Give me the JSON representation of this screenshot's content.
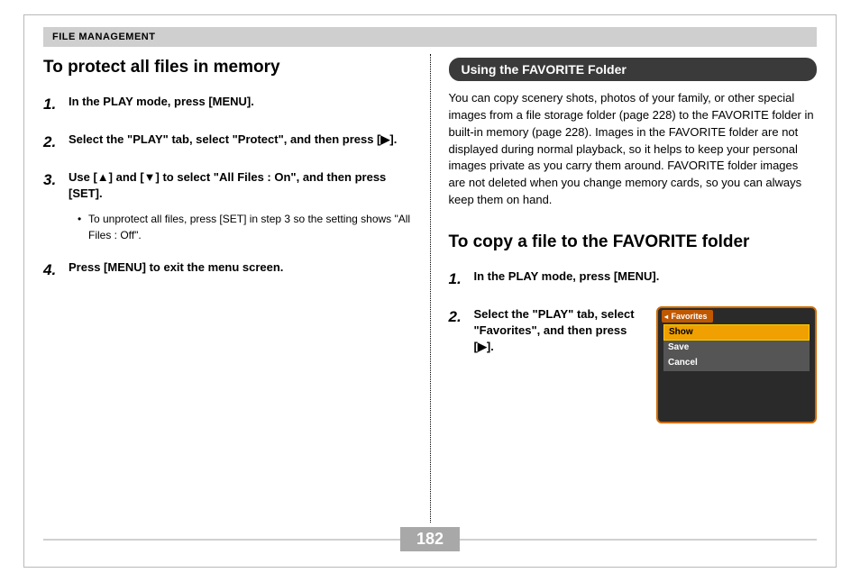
{
  "header": {
    "section": "FILE MANAGEMENT"
  },
  "page_number": "182",
  "colors": {
    "header_bg": "#cfcfcf",
    "pill_bg": "#3a3a3a",
    "pill_text": "#ffffff",
    "page_border": "#b8b8b8",
    "pagenum_bg": "#a8a8a8",
    "screenshot_border": "#d06a00",
    "screenshot_bg": "#2a2a2a",
    "menu_selected_bg": "#f0a000",
    "menu_item_bg": "#555555"
  },
  "left": {
    "title": "To protect all files in memory",
    "steps": [
      {
        "n": "1.",
        "text": "In the PLAY mode, press [MENU]."
      },
      {
        "n": "2.",
        "text": "Select the \"PLAY\" tab, select \"Protect\", and then press [▶]."
      },
      {
        "n": "3.",
        "text": "Use [▲] and [▼] to select \"All Files : On\", and then press [SET]."
      },
      {
        "n": "4.",
        "text": "Press [MENU] to exit the menu screen."
      }
    ],
    "sub_bullet": "To unprotect all files, press [SET] in step 3 so the setting shows \"All Files : Off\"."
  },
  "right": {
    "pill_title": "Using the FAVORITE Folder",
    "body": "You can copy scenery shots, photos of your family, or other special images from a file storage folder (page 228) to the FAVORITE folder in built-in memory (page 228). Images in the FAVORITE folder are not displayed during normal playback, so it helps to keep your personal images private as you carry them around. FAVORITE folder images are not deleted when you change memory cards, so you can always keep them on hand.",
    "subtitle": "To copy a file to the FAVORITE folder",
    "steps": [
      {
        "n": "1.",
        "text": "In the PLAY mode, press [MENU]."
      },
      {
        "n": "2.",
        "text": "Select the \"PLAY\" tab, select \"Favorites\", and then press [▶]."
      }
    ],
    "screenshot": {
      "tab": "Favorites",
      "items": [
        "Show",
        "Save",
        "Cancel"
      ],
      "selected_index": 0
    }
  }
}
